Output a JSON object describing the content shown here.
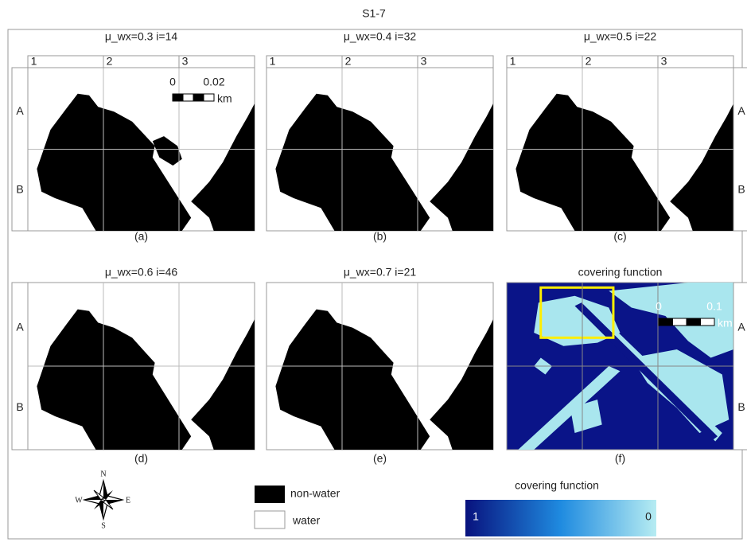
{
  "title": "S1-7",
  "panels": [
    {
      "title": "μ_wx=0.3  i=14",
      "caption": "(a)",
      "column_labels": [
        "1",
        "2",
        "3"
      ],
      "row_labels": [
        "A",
        "B"
      ]
    },
    {
      "title": "μ_wx=0.4  i=32",
      "caption": "(b)",
      "column_labels": [
        "1",
        "2",
        "3"
      ]
    },
    {
      "title": "μ_wx=0.5  i=22",
      "caption": "(c)",
      "column_labels": [
        "1",
        "2",
        "3"
      ],
      "row_labels": [
        "A",
        "B"
      ]
    },
    {
      "title": "μ_wx=0.6  i=46",
      "caption": "(d)",
      "row_labels": [
        "A",
        "B"
      ]
    },
    {
      "title": "μ_wx=0.7  i=21",
      "caption": "(e)"
    },
    {
      "title": "covering function",
      "caption": "(f)",
      "row_labels": [
        "A",
        "B"
      ]
    }
  ],
  "scale_small": {
    "start": "0",
    "end": "0.02",
    "unit": "km"
  },
  "scale_large": {
    "start": "0",
    "end": "0.1",
    "unit": "km"
  },
  "compass": {
    "n": "N",
    "s": "S",
    "e": "E",
    "w": "W"
  },
  "legend": {
    "items": [
      "non-water",
      "water"
    ]
  },
  "colorbar": {
    "title": "covering function",
    "high": "1",
    "low": "0"
  }
}
